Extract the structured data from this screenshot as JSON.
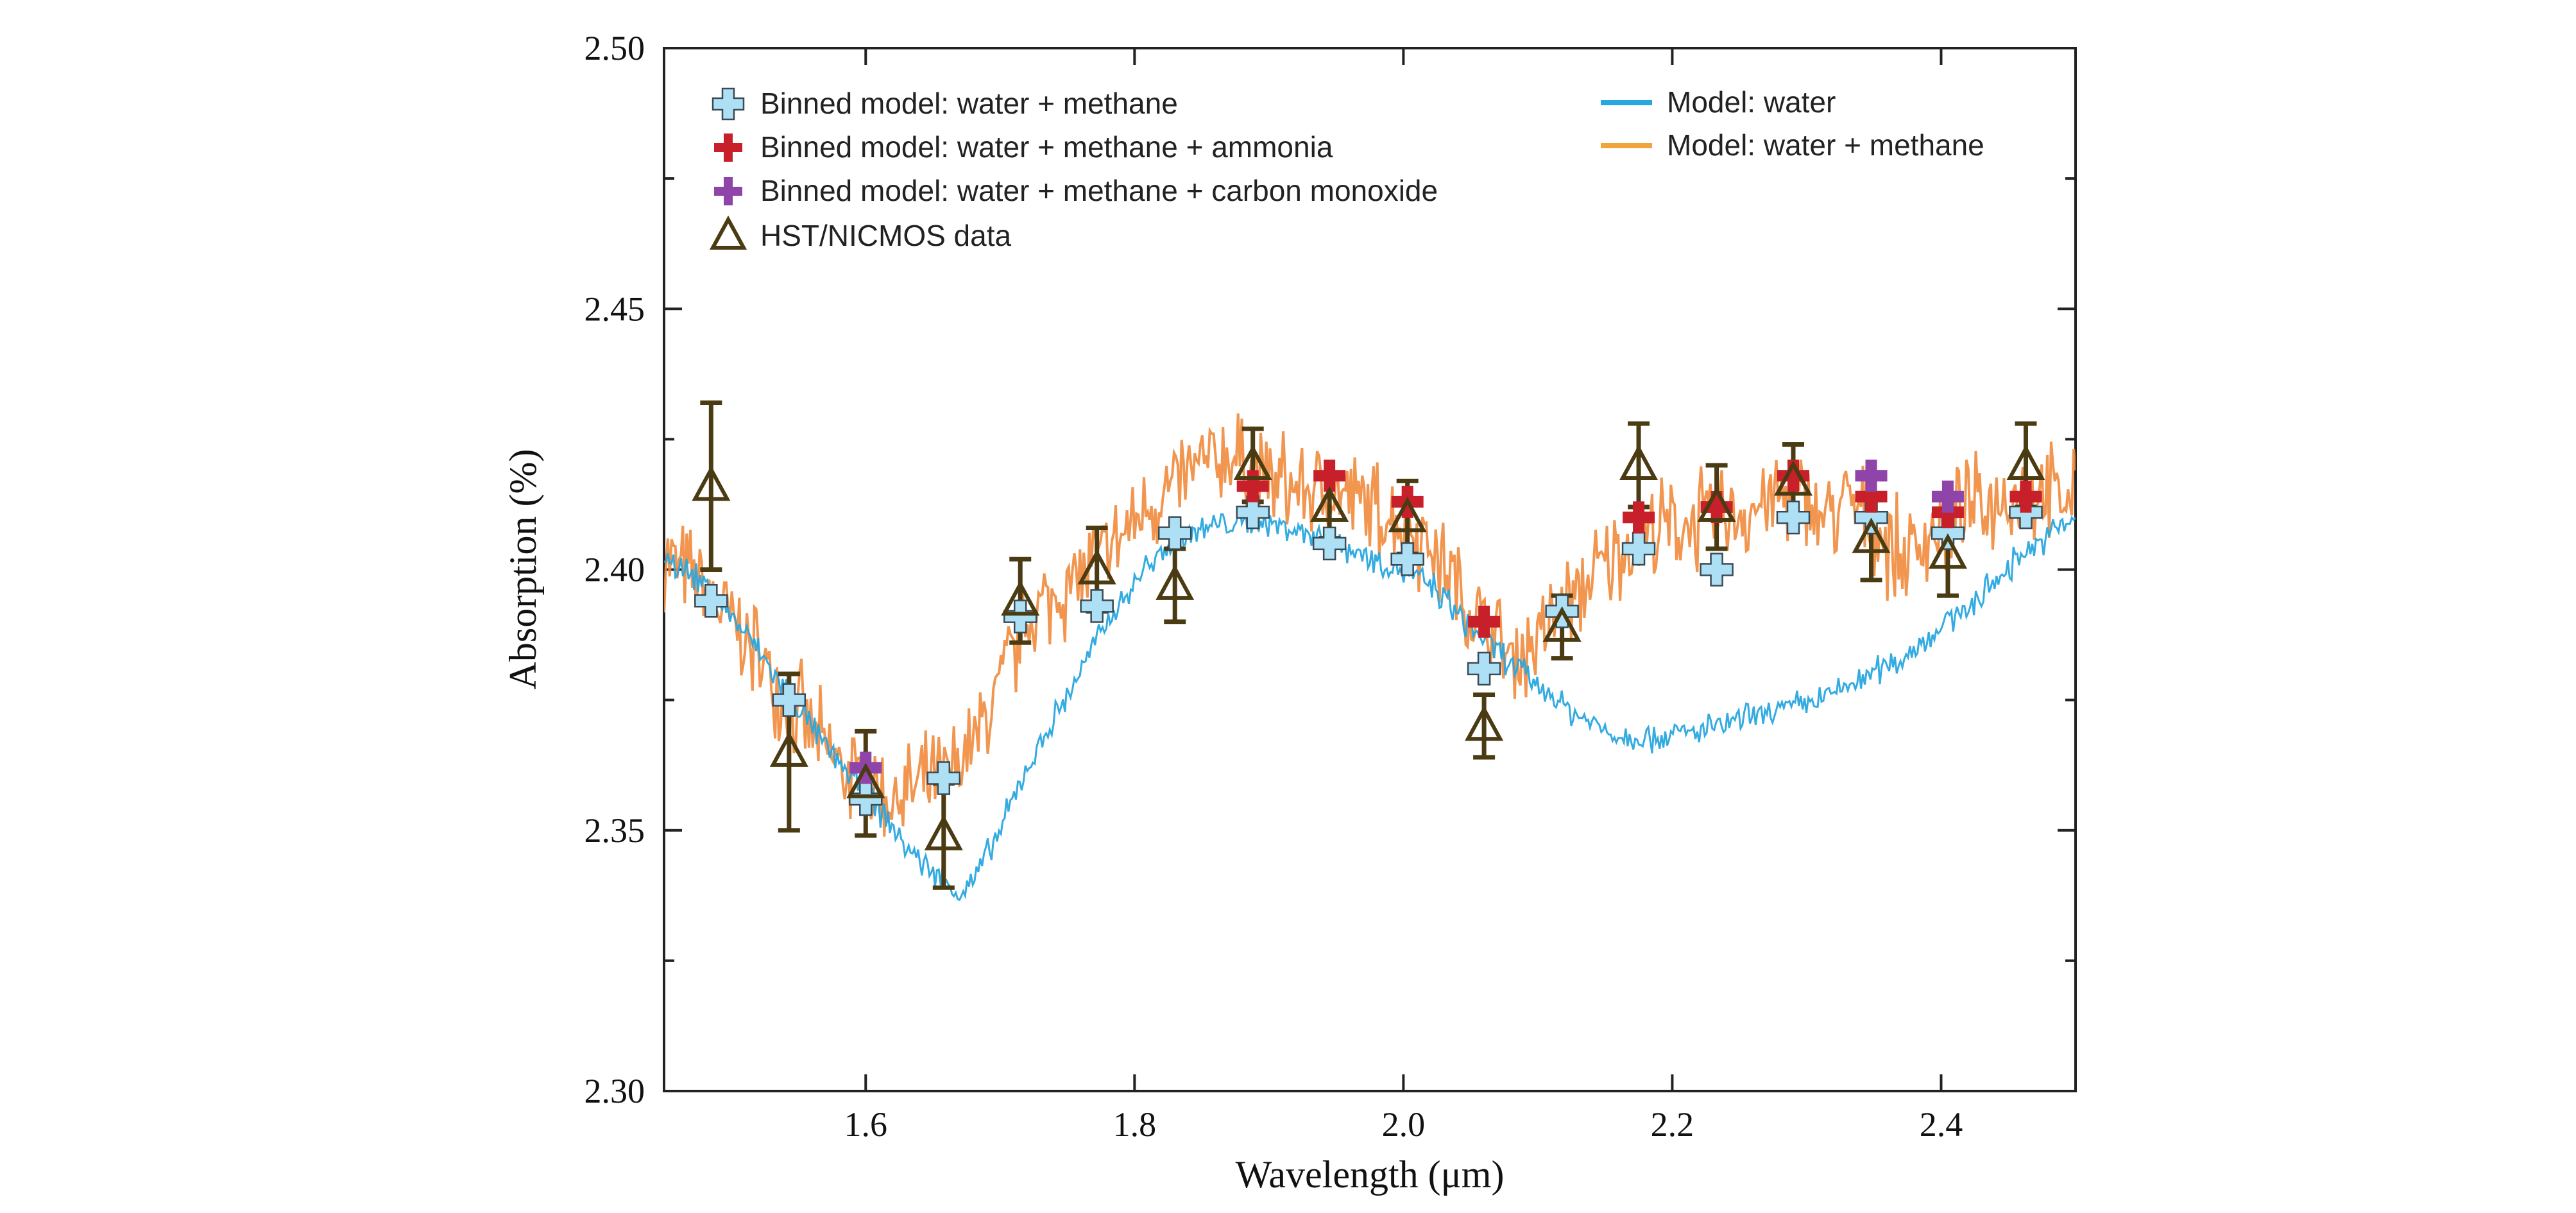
{
  "chart_data": {
    "type": "line",
    "xlabel": "Wavelength (μm)",
    "ylabel": "Absorption (%)",
    "xlim": [
      1.45,
      2.5
    ],
    "ylim": [
      2.3,
      2.5
    ],
    "x_ticks": [
      1.6,
      1.8,
      2.0,
      2.2,
      2.4
    ],
    "x_tick_labels": [
      "1.6",
      "1.8",
      "2.0",
      "2.2",
      "2.4"
    ],
    "y_ticks": [
      2.3,
      2.35,
      2.4,
      2.45,
      2.5
    ],
    "y_tick_labels": [
      "2.30",
      "2.35",
      "2.40",
      "2.45",
      "2.50"
    ],
    "grid": false,
    "legend_placement": "top",
    "colors": {
      "model_water": "#29a7df",
      "model_water_methane": "#f08a3c",
      "binned_water_methane": "#aee0f5",
      "binned_ammonia": "#c8202a",
      "binned_co": "#8e44a8",
      "hst_data": "#4a3b12"
    },
    "legend": {
      "binned_water_methane": "Binned model: water + methane",
      "binned_ammonia": "Binned model: water + methane + ammonia",
      "binned_co": "Binned model: water + methane + carbon monoxide",
      "hst_data": "HST/NICMOS data",
      "model_water": "Model: water",
      "model_water_methane": "Model: water + methane"
    },
    "series": [
      {
        "name": "Model: water",
        "kind": "line",
        "x": [
          1.45,
          1.48,
          1.51,
          1.54,
          1.57,
          1.6,
          1.63,
          1.65,
          1.67,
          1.68,
          1.7,
          1.72,
          1.75,
          1.78,
          1.81,
          1.84,
          1.87,
          1.9,
          1.93,
          1.96,
          1.99,
          2.02,
          2.05,
          2.08,
          2.1,
          2.13,
          2.16,
          2.19,
          2.22,
          2.25,
          2.28,
          2.31,
          2.34,
          2.37,
          2.4,
          2.43,
          2.46,
          2.5
        ],
        "y": [
          2.403,
          2.397,
          2.388,
          2.377,
          2.366,
          2.357,
          2.347,
          2.342,
          2.338,
          2.34,
          2.35,
          2.362,
          2.376,
          2.39,
          2.401,
          2.407,
          2.409,
          2.409,
          2.407,
          2.404,
          2.401,
          2.397,
          2.389,
          2.382,
          2.378,
          2.372,
          2.368,
          2.368,
          2.369,
          2.371,
          2.373,
          2.375,
          2.379,
          2.383,
          2.389,
          2.395,
          2.403,
          2.41
        ]
      },
      {
        "name": "Model: water + methane",
        "kind": "line",
        "x": [
          1.45,
          1.48,
          1.51,
          1.54,
          1.57,
          1.6,
          1.62,
          1.64,
          1.66,
          1.68,
          1.7,
          1.72,
          1.75,
          1.78,
          1.81,
          1.84,
          1.87,
          1.9,
          1.93,
          1.96,
          1.99,
          2.02,
          2.05,
          2.08,
          2.1,
          2.12,
          2.14,
          2.17,
          2.2,
          2.23,
          2.26,
          2.29,
          2.31,
          2.33,
          2.35,
          2.37,
          2.4,
          2.43,
          2.46,
          2.5
        ],
        "y": [
          2.403,
          2.396,
          2.387,
          2.376,
          2.365,
          2.358,
          2.356,
          2.358,
          2.36,
          2.366,
          2.378,
          2.39,
          2.397,
          2.403,
          2.412,
          2.418,
          2.422,
          2.417,
          2.415,
          2.414,
          2.41,
          2.405,
          2.392,
          2.383,
          2.387,
          2.393,
          2.398,
          2.406,
          2.408,
          2.41,
          2.412,
          2.415,
          2.41,
          2.413,
          2.409,
          2.402,
          2.409,
          2.412,
          2.415,
          2.413
        ]
      },
      {
        "name": "Binned model: water + methane",
        "kind": "marker",
        "x": [
          1.485,
          1.543,
          1.6,
          1.658,
          1.715,
          1.772,
          1.83,
          1.888,
          1.945,
          2.003,
          2.06,
          2.118,
          2.175,
          2.233,
          2.29,
          2.348,
          2.405,
          2.463
        ],
        "y": [
          2.394,
          2.375,
          2.356,
          2.36,
          2.391,
          2.393,
          2.407,
          2.411,
          2.405,
          2.402,
          2.381,
          2.392,
          2.404,
          2.4,
          2.41,
          2.41,
          2.407,
          2.411
        ]
      },
      {
        "name": "Binned model: water + methane + ammonia",
        "kind": "marker",
        "x": [
          1.888,
          1.945,
          2.003,
          2.06,
          2.175,
          2.233,
          2.29,
          2.348,
          2.405,
          2.463
        ],
        "y": [
          2.416,
          2.418,
          2.413,
          2.39,
          2.41,
          2.412,
          2.418,
          2.414,
          2.411,
          2.414
        ]
      },
      {
        "name": "Binned model: water + methane + carbon monoxide",
        "kind": "marker",
        "x": [
          1.6,
          2.348,
          2.405
        ],
        "y": [
          2.362,
          2.418,
          2.414
        ]
      },
      {
        "name": "HST/NICMOS data",
        "kind": "errorbar",
        "x": [
          1.485,
          1.543,
          1.6,
          1.658,
          1.715,
          1.772,
          1.83,
          1.888,
          1.945,
          2.003,
          2.06,
          2.118,
          2.175,
          2.233,
          2.29,
          2.348,
          2.405,
          2.463
        ],
        "y": [
          2.416,
          2.365,
          2.359,
          2.349,
          2.394,
          2.4,
          2.397,
          2.42,
          2.412,
          2.41,
          2.37,
          2.389,
          2.42,
          2.412,
          2.417,
          2.406,
          2.403,
          2.42
        ],
        "yerr": [
          0.016,
          0.015,
          0.01,
          0.01,
          0.008,
          0.008,
          0.007,
          0.007,
          0.006,
          0.007,
          0.006,
          0.006,
          0.008,
          0.008,
          0.007,
          0.008,
          0.008,
          0.008
        ]
      }
    ]
  }
}
